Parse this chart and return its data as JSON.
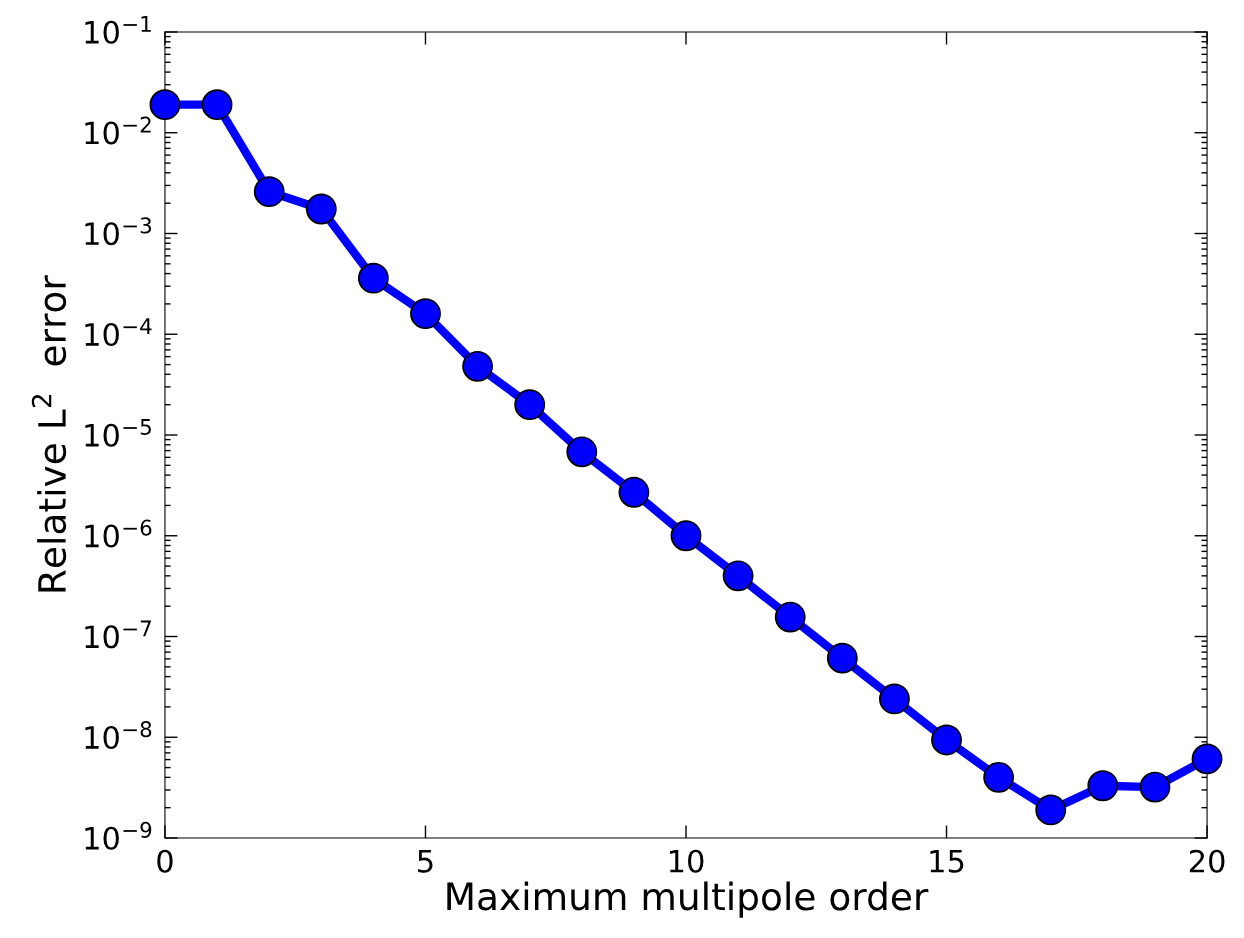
{
  "chart_data": {
    "type": "line",
    "xlabel": "Maximum multipole order",
    "ylabel": "Relative L$^{2}$  error",
    "x": [
      0,
      1,
      2,
      3,
      4,
      5,
      6,
      7,
      8,
      9,
      10,
      11,
      12,
      13,
      14,
      15,
      16,
      17,
      18,
      19,
      20
    ],
    "series": [
      {
        "color": "#0000ff",
        "values": [
          0.019,
          0.019,
          0.0026,
          0.00175,
          0.00036,
          0.00016,
          4.8e-05,
          2e-05,
          6.8e-06,
          2.7e-06,
          1e-06,
          4e-07,
          1.56e-07,
          6.1e-08,
          2.4e-08,
          9.4e-09,
          4e-09,
          1.9e-09,
          3.3e-09,
          3.2e-09,
          6.1e-09
        ]
      }
    ],
    "log": "y",
    "xlim": [
      0,
      20
    ],
    "xticks": [
      0,
      5,
      10,
      15,
      20
    ],
    "ylim": [
      1e-09,
      0.1
    ],
    "yticks": [
      {
        "value": 1e-09,
        "label": "10$^{−9}$"
      },
      {
        "value": 1e-08,
        "label": "10$^{−8}$"
      },
      {
        "value": 1e-07,
        "label": "10$^{−7}$"
      },
      {
        "value": 1e-06,
        "label": "10$^{−6}$"
      },
      {
        "value": 1e-05,
        "label": "10$^{−5}$"
      },
      {
        "value": 0.0001,
        "label": "10$^{−4}$"
      },
      {
        "value": 0.001,
        "label": "10$^{−3}$"
      },
      {
        "value": 0.01,
        "label": "10$^{−2}$"
      },
      {
        "value": 0.1,
        "label": "10$^{−1}$"
      }
    ],
    "marker": "circle",
    "line_style": "solid",
    "grid": false
  }
}
